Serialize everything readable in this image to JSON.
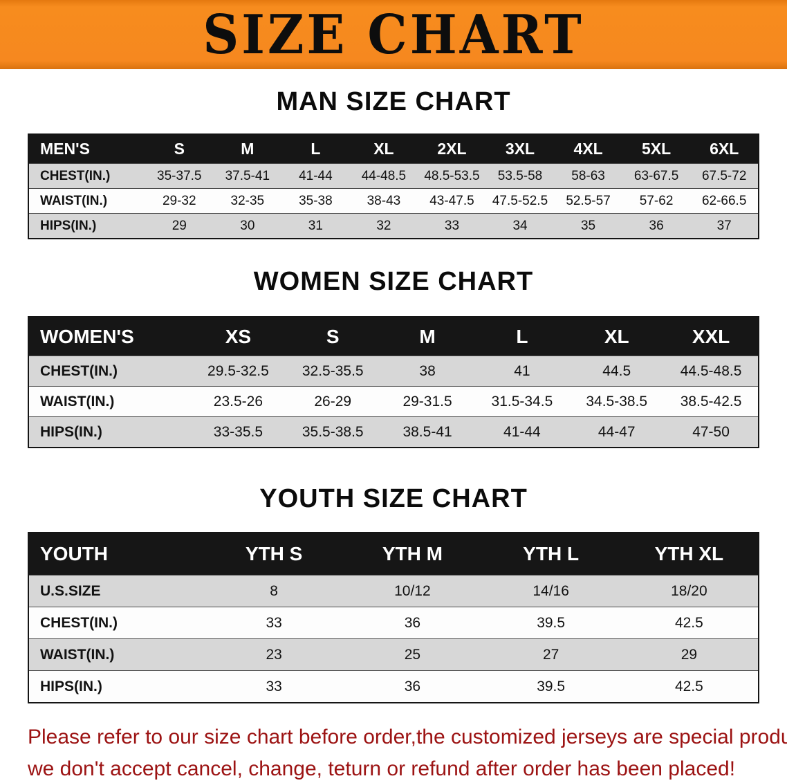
{
  "banner": {
    "title": "SIZE CHART"
  },
  "colors": {
    "banner_bg": "#f6881f",
    "table_header_bg": "#161616",
    "row_stripe": "#d7d7d7",
    "footer_text": "#9c1313"
  },
  "chart_data": [
    {
      "type": "table",
      "title": "MAN SIZE CHART",
      "columns": [
        "MEN'S",
        "S",
        "M",
        "L",
        "XL",
        "2XL",
        "3XL",
        "4XL",
        "5XL",
        "6XL"
      ],
      "rows": [
        [
          "CHEST(IN.)",
          "35-37.5",
          "37.5-41",
          "41-44",
          "44-48.5",
          "48.5-53.5",
          "53.5-58",
          "58-63",
          "63-67.5",
          "67.5-72"
        ],
        [
          "WAIST(IN.)",
          "29-32",
          "32-35",
          "35-38",
          "38-43",
          "43-47.5",
          "47.5-52.5",
          "52.5-57",
          "57-62",
          "62-66.5"
        ],
        [
          "HIPS(IN.)",
          "29",
          "30",
          "31",
          "32",
          "33",
          "34",
          "35",
          "36",
          "37"
        ]
      ]
    },
    {
      "type": "table",
      "title": "WOMEN SIZE CHART",
      "columns": [
        "WOMEN'S",
        "XS",
        "S",
        "M",
        "L",
        "XL",
        "XXL"
      ],
      "rows": [
        [
          "CHEST(IN.)",
          "29.5-32.5",
          "32.5-35.5",
          "38",
          "41",
          "44.5",
          "44.5-48.5"
        ],
        [
          "WAIST(IN.)",
          "23.5-26",
          "26-29",
          "29-31.5",
          "31.5-34.5",
          "34.5-38.5",
          "38.5-42.5"
        ],
        [
          "HIPS(IN.)",
          "33-35.5",
          "35.5-38.5",
          "38.5-41",
          "41-44",
          "44-47",
          "47-50"
        ]
      ]
    },
    {
      "type": "table",
      "title": "YOUTH SIZE CHART",
      "columns": [
        "YOUTH",
        "YTH S",
        "YTH M",
        "YTH L",
        "YTH XL"
      ],
      "rows": [
        [
          "U.S.SIZE",
          "8",
          "10/12",
          "14/16",
          "18/20"
        ],
        [
          "CHEST(IN.)",
          "33",
          "36",
          "39.5",
          "42.5"
        ],
        [
          "WAIST(IN.)",
          "23",
          "25",
          "27",
          "29"
        ],
        [
          "HIPS(IN.)",
          "33",
          "36",
          "39.5",
          "42.5"
        ]
      ]
    }
  ],
  "footer": {
    "lines": [
      "Please refer to our size chart before order,the customized jerseys are special products,",
      "we don't accept cancel, change, teturn or refund after order has been placed!"
    ]
  }
}
